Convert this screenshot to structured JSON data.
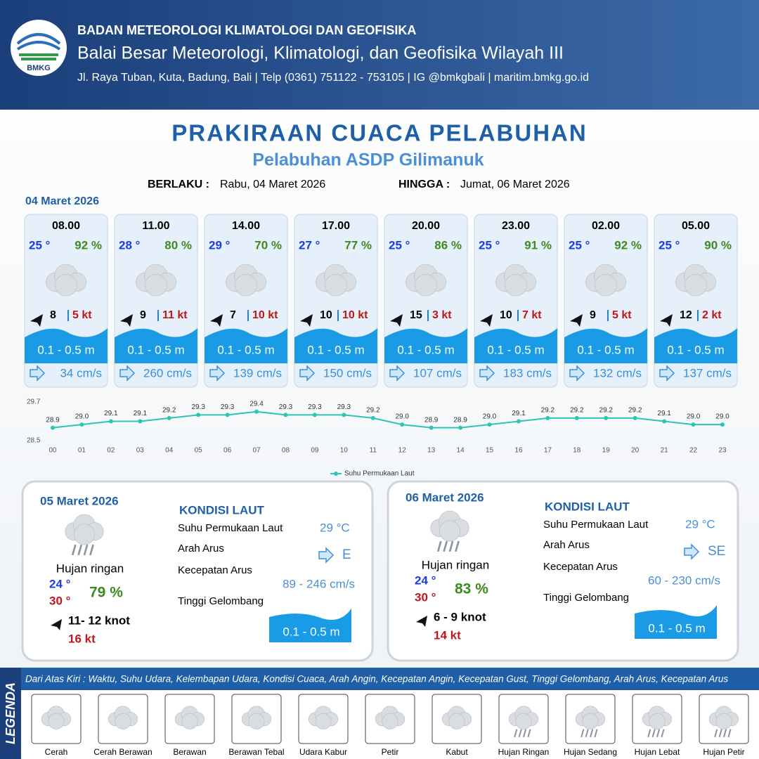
{
  "header": {
    "logo": "BMKG",
    "org": "BADAN METEOROLOGI KLIMATOLOGI DAN GEOFISIKA",
    "office": "Balai Besar Meteorologi, Klimatologi, dan Geofisika Wilayah III",
    "address": "Jl. Raya Tuban, Kuta, Badung, Bali | Telp (0361) 751122 - 753105 | IG @bmkgbali | maritim.bmkg.go.id"
  },
  "title": "PRAKIRAAN CUACA PELABUHAN",
  "subtitle": "Pelabuhan ASDP Gilimanuk",
  "validity": {
    "from_label": "BERLAKU :",
    "from": "Rabu, 04 Maret 2026",
    "to_label": "HINGGA :",
    "to": "Jumat, 06 Maret 2026"
  },
  "forecast": {
    "date": "04 Maret 2026",
    "cards": [
      {
        "time": "08.00",
        "temp": "25 °",
        "humidity": "92 %",
        "wind": "8",
        "gust": "5 kt",
        "wave": "0.1 - 0.5 m",
        "current": "34 cm/s"
      },
      {
        "time": "11.00",
        "temp": "28 °",
        "humidity": "80 %",
        "wind": "9",
        "gust": "11 kt",
        "wave": "0.1 - 0.5 m",
        "current": "260 cm/s"
      },
      {
        "time": "14.00",
        "temp": "29 °",
        "humidity": "70 %",
        "wind": "7",
        "gust": "10 kt",
        "wave": "0.1 - 0.5 m",
        "current": "139 cm/s"
      },
      {
        "time": "17.00",
        "temp": "27 °",
        "humidity": "77 %",
        "wind": "10",
        "gust": "10 kt",
        "wave": "0.1 - 0.5 m",
        "current": "150 cm/s"
      },
      {
        "time": "20.00",
        "temp": "25 °",
        "humidity": "86 %",
        "wind": "15",
        "gust": "3 kt",
        "wave": "0.1 - 0.5 m",
        "current": "107 cm/s"
      },
      {
        "time": "23.00",
        "temp": "25 °",
        "humidity": "91 %",
        "wind": "10",
        "gust": "7 kt",
        "wave": "0.1 - 0.5 m",
        "current": "183 cm/s"
      },
      {
        "time": "02.00",
        "temp": "25 °",
        "humidity": "92 %",
        "wind": "9",
        "gust": "5 kt",
        "wave": "0.1 - 0.5 m",
        "current": "132 cm/s"
      },
      {
        "time": "05.00",
        "temp": "25 °",
        "humidity": "90 %",
        "wind": "12",
        "gust": "2 kt",
        "wave": "0.1 - 0.5 m",
        "current": "137 cm/s"
      }
    ]
  },
  "chart_data": {
    "type": "line",
    "categories": [
      "00",
      "01",
      "02",
      "03",
      "04",
      "05",
      "06",
      "07",
      "08",
      "09",
      "10",
      "11",
      "12",
      "13",
      "14",
      "15",
      "16",
      "17",
      "18",
      "19",
      "20",
      "21",
      "22",
      "23"
    ],
    "series": [
      {
        "name": "Suhu Permukaan Laut",
        "color": "#2ec4b6",
        "values": [
          28.9,
          29.0,
          29.1,
          29.1,
          29.2,
          29.3,
          29.3,
          29.4,
          29.3,
          29.3,
          29.3,
          29.2,
          29.0,
          28.9,
          28.9,
          29.0,
          29.1,
          29.2,
          29.2,
          29.2,
          29.2,
          29.1,
          29.0,
          29.0
        ],
        "value_labels": [
          "28.9",
          "29.0",
          "29.1",
          "29.1",
          "29.2",
          "29.3",
          "29.3",
          "29.4",
          "29.3",
          "29.3",
          "29.3",
          "29.2",
          "29.0",
          "28.9",
          "28.9",
          "29.0",
          "29.1",
          "29.2",
          "29.2",
          "29.2",
          "29.2",
          "29.1",
          "29.0",
          "29.0"
        ]
      }
    ],
    "ylim": [
      28.5,
      29.7
    ],
    "yticks": [
      28.5,
      29.7
    ]
  },
  "days": [
    {
      "date": "05 Maret 2026",
      "weather": "Hujan ringan",
      "temp_min": "24 °",
      "temp_max": "30 °",
      "humidity": "79 %",
      "wind": "11- 12 knot",
      "gust": "16 kt",
      "sea_title": "KONDISI LAUT",
      "sst_label": "Suhu Permukaan Laut",
      "sst": "29 °C",
      "dir_label": "Arah Arus",
      "dir": "E",
      "speed_label": "Kecepatan Arus",
      "speed": "89 - 246 cm/s",
      "wave_label": "Tinggi Gelombang",
      "wave": "0.1 - 0.5 m"
    },
    {
      "date": "06 Maret 2026",
      "weather": "Hujan ringan",
      "temp_min": "24 °",
      "temp_max": "30 °",
      "humidity": "83 %",
      "wind": "6  - 9 knot",
      "gust": "14 kt",
      "sea_title": "KONDISI LAUT",
      "sst_label": "Suhu Permukaan Laut",
      "sst": "29 °C",
      "dir_label": "Arah Arus",
      "dir": "SE",
      "speed_label": "Kecepatan Arus",
      "speed": "60 - 230 cm/s",
      "wave_label": "Tinggi Gelombang",
      "wave": "0.1 - 0.5 m"
    }
  ],
  "legend": {
    "title": "LEGENDA",
    "note": "Dari Atas Kiri : Waktu, Suhu Udara, Kelembapan Udara, Kondisi Cuaca, Arah Angin, Kecepatan Angin, Kecepatan Gust, Tinggi Gelombang, Arah Arus, Kecepatan Arus",
    "items": [
      "Cerah",
      "Cerah Berawan",
      "Berawan",
      "Berawan Tebal",
      "Udara Kabur",
      "Petir",
      "Kabut",
      "Hujan Ringan",
      "Hujan Sedang",
      "Hujan Lebat",
      "Hujan Petir"
    ]
  }
}
